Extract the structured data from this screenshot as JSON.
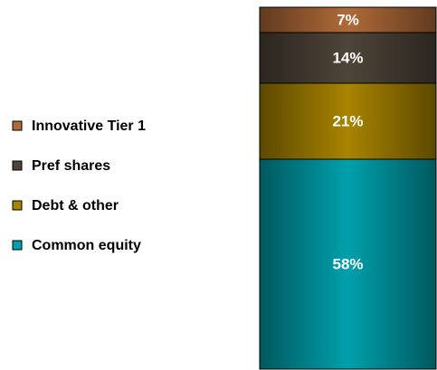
{
  "chart_data": {
    "type": "stacked_bar",
    "categories": [
      null
    ],
    "ylim": [
      0,
      100
    ],
    "legend": "left",
    "series": [
      {
        "name": "Common equity",
        "color": "#00a0ac",
        "values": [
          58
        ],
        "value_labels": [
          "58%"
        ]
      },
      {
        "name": "Debt & other",
        "color": "#a88400",
        "values": [
          21
        ],
        "value_labels": [
          "21%"
        ]
      },
      {
        "name": "Pref shares",
        "color": "#4e4439",
        "values": [
          14
        ],
        "value_labels": [
          "14%"
        ]
      },
      {
        "name": "Innovative Tier 1",
        "color": "#b06a38",
        "values": [
          7
        ],
        "value_labels": [
          "7%"
        ]
      }
    ]
  }
}
